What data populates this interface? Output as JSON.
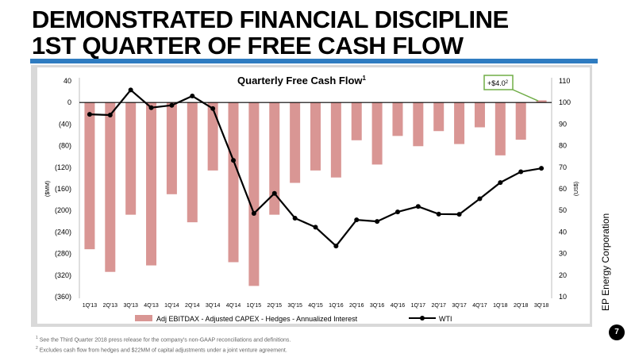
{
  "slide": {
    "title_line1": "DEMONSTRATED FINANCIAL DISCIPLINE",
    "title_line2": "1ST QUARTER OF FREE CASH FLOW",
    "company": "EP Energy Corporation",
    "page_number": "7",
    "footnotes": [
      {
        "marker": "1",
        "text": "See the Third Quarter 2018 press release for the company's non-GAAP reconciliations and definitions."
      },
      {
        "marker": "2",
        "text": "Excludes cash flow from hedges and $22MM of capital adjustments under a joint venture agreement."
      }
    ],
    "colors": {
      "accent_rule": "#2f7cc1",
      "frame": "#d9d9d9"
    }
  },
  "chart_data": {
    "type": "bar",
    "title": "Quarterly Free Cash Flow",
    "title_sup": "1",
    "categories": [
      "1Q'13",
      "2Q'13",
      "3Q'13",
      "4Q'13",
      "1Q'14",
      "2Q'14",
      "3Q'14",
      "4Q'14",
      "1Q'15",
      "2Q'15",
      "3Q'15",
      "4Q'15",
      "1Q'16",
      "2Q'16",
      "3Q'16",
      "4Q'16",
      "1Q'17",
      "2Q'17",
      "3Q'17",
      "4Q'17",
      "1Q'18",
      "2Q'18",
      "3Q'18"
    ],
    "ylabel": "($MM)",
    "y2label": "(US$)",
    "ylim": [
      -360,
      40
    ],
    "y_ticks": [
      40,
      0,
      -40,
      -80,
      -120,
      -160,
      -200,
      -240,
      -280,
      -320,
      -360
    ],
    "y_tick_labels": [
      "40",
      "0",
      "(40)",
      "(80)",
      "(120)",
      "(160)",
      "(200)",
      "(240)",
      "(280)",
      "(320)",
      "(360)"
    ],
    "y2lim": [
      10,
      110
    ],
    "y2_ticks": [
      110,
      100,
      90,
      80,
      70,
      60,
      50,
      40,
      30,
      20,
      10
    ],
    "y2_tick_labels": [
      "110",
      "100",
      "90",
      "80",
      "70",
      "60",
      "50",
      "40",
      "30",
      "20",
      "10"
    ],
    "series": [
      {
        "name": "Adj EBITDAX - Adjusted CAPEX - Hedges - Annualized Interest",
        "type": "bar",
        "axis": "left",
        "color": "#d99694",
        "values": [
          -272,
          -314,
          -208,
          -302,
          -170,
          -222,
          -126,
          -296,
          -340,
          -208,
          -149,
          -126,
          -139,
          -70,
          -115,
          -62,
          -81,
          -53,
          -77,
          -46,
          -98,
          -69,
          4.0
        ]
      },
      {
        "name": "WTI",
        "type": "line",
        "axis": "right",
        "color": "#000000",
        "values": [
          94.5,
          94.2,
          105.8,
          97.6,
          98.7,
          103.0,
          97.2,
          73.2,
          48.6,
          57.9,
          46.4,
          42.2,
          33.5,
          45.6,
          44.9,
          49.3,
          51.8,
          48.3,
          48.2,
          55.4,
          62.9,
          67.9,
          69.5
        ]
      }
    ],
    "callout": {
      "label": "+$4.0",
      "label_sup": "2",
      "category": "3Q'18"
    },
    "legend": "bottom",
    "grid": false
  }
}
